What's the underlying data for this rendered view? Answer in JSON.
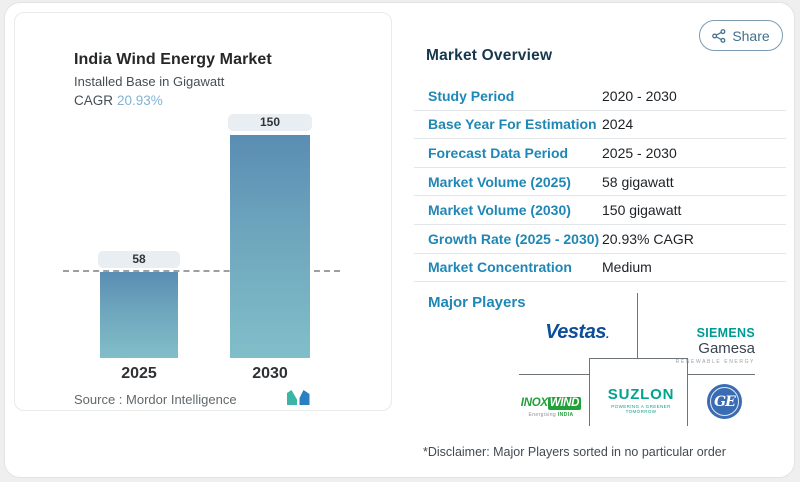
{
  "share": {
    "label": "Share"
  },
  "chart_panel": {
    "title": "India Wind Energy Market",
    "subtitle": "Installed Base in Gigawatt",
    "cagr_label": "CAGR",
    "cagr_value": "20.93%",
    "source_label": "Source :",
    "source_value": "Mordor Intelligence"
  },
  "chart_data": {
    "type": "bar",
    "title": "India Wind Energy Market",
    "subtitle": "Installed Base in Gigawatt",
    "unit": "gigawatt",
    "categories": [
      "2025",
      "2030"
    ],
    "values": [
      58,
      150
    ],
    "cagr": "20.93%",
    "reference_line": 58,
    "ylim": [
      0,
      160
    ],
    "grid": false,
    "bar_gradient": [
      "#5a8db3",
      "#81bec9"
    ]
  },
  "overview": {
    "heading": "Market Overview",
    "rows": [
      {
        "label": "Study Period",
        "value": "2020 - 2030"
      },
      {
        "label": "Base Year For Estimation",
        "value": "2024"
      },
      {
        "label": "Forecast Data Period",
        "value": "2025 - 2030"
      },
      {
        "label": "Market Volume (2025)",
        "value": "58 gigawatt"
      },
      {
        "label": "Market Volume (2030)",
        "value": "150 gigawatt"
      },
      {
        "label": "Growth Rate (2025 - 2030)",
        "value": "20.93% CAGR"
      },
      {
        "label": "Market Concentration",
        "value": "Medium"
      }
    ],
    "major_players_label": "Major Players",
    "disclaimer": "*Disclaimer: Major Players sorted in no particular order"
  },
  "logos": {
    "vestas": "Vestas",
    "vestas_dot": ".",
    "siemens": "SIEMENS",
    "gamesa": "Gamesa",
    "siemens_tag": "RENEWABLE ENERGY",
    "inox_a": "INOX",
    "inox_b": "WIND",
    "inox_tag_a": "Energising ",
    "inox_tag_b": "INDIA",
    "suzlon": "SUZLON",
    "suzlon_tag": "POWERING A GREENER TOMORROW",
    "ge": "GE"
  },
  "colors": {
    "accent_blue": "#1f87b5",
    "heading_navy": "#16384e",
    "bar_top": "#5a8db3",
    "bar_bottom": "#81bec9",
    "cagr_value": "#83b3d2",
    "vestas_blue": "#0d4e9a",
    "siemens_teal": "#009a93",
    "gamesa_dark": "#394450",
    "inox_green": "#21a038",
    "suzlon_teal": "#00a390",
    "ge_blue": "#3a6cb4",
    "mordor_teal": "#3db5a4",
    "mordor_blue": "#2a7fc1"
  }
}
